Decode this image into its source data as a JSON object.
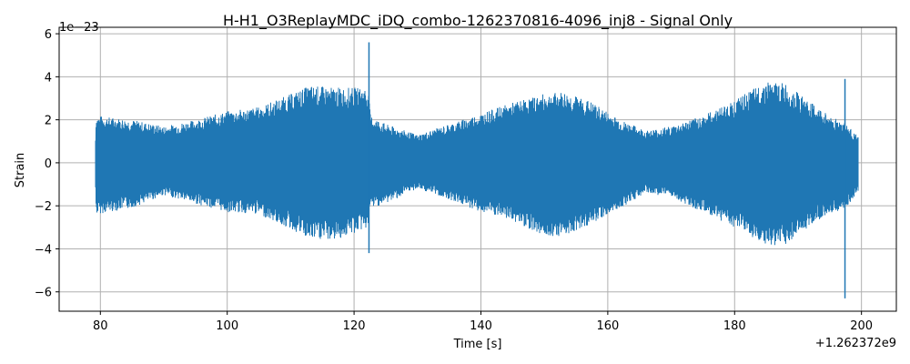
{
  "chart_data": {
    "type": "line",
    "title": "H-H1_O3ReplayMDC_iDQ_combo-1262370816-4096_inj8 - Signal Only",
    "xlabel": "Time [s]",
    "ylabel": "Strain",
    "x_offset_label": "+1.262372e9",
    "y_scale_label": "1e−23",
    "xlim": [
      73.5,
      205.5
    ],
    "ylim": [
      -6.9,
      6.3
    ],
    "x_ticks": [
      80,
      100,
      120,
      140,
      160,
      180,
      200
    ],
    "y_ticks": [
      -6,
      -4,
      -2,
      0,
      2,
      4,
      6
    ],
    "x_tick_labels": [
      "80",
      "100",
      "120",
      "140",
      "160",
      "180",
      "200"
    ],
    "y_tick_labels": [
      "−6",
      "−4",
      "−2",
      "0",
      "2",
      "4",
      "6"
    ],
    "grid": true,
    "color": "#1f77b4",
    "series": [
      {
        "x_range": [
          79.3,
          199.5
        ],
        "envelope": [
          {
            "x": 79.3,
            "max": 2.2,
            "min": -2.4
          },
          {
            "x": 85,
            "max": 2.0,
            "min": -2.1
          },
          {
            "x": 90,
            "max": 1.7,
            "min": -1.5
          },
          {
            "x": 95,
            "max": 2.0,
            "min": -1.9
          },
          {
            "x": 100,
            "max": 2.4,
            "min": -2.3
          },
          {
            "x": 105,
            "max": 2.6,
            "min": -2.4
          },
          {
            "x": 110,
            "max": 3.2,
            "min": -3.1
          },
          {
            "x": 113,
            "max": 3.6,
            "min": -3.6
          },
          {
            "x": 117,
            "max": 3.5,
            "min": -3.6
          },
          {
            "x": 120,
            "max": 3.5,
            "min": -3.3
          },
          {
            "x": 122.2,
            "max": 3.5,
            "min": -3.0
          },
          {
            "x": 122.6,
            "max": 2.2,
            "min": -2.1
          },
          {
            "x": 125,
            "max": 1.8,
            "min": -1.9
          },
          {
            "x": 130,
            "max": 1.3,
            "min": -1.2
          },
          {
            "x": 135,
            "max": 1.8,
            "min": -1.7
          },
          {
            "x": 140,
            "max": 2.3,
            "min": -2.3
          },
          {
            "x": 145,
            "max": 2.8,
            "min": -2.7
          },
          {
            "x": 150,
            "max": 3.2,
            "min": -3.4
          },
          {
            "x": 153,
            "max": 3.3,
            "min": -3.4
          },
          {
            "x": 157,
            "max": 2.9,
            "min": -2.9
          },
          {
            "x": 162,
            "max": 2.0,
            "min": -2.1
          },
          {
            "x": 166,
            "max": 1.5,
            "min": -1.4
          },
          {
            "x": 170,
            "max": 1.7,
            "min": -1.6
          },
          {
            "x": 175,
            "max": 2.2,
            "min": -2.3
          },
          {
            "x": 180,
            "max": 2.9,
            "min": -3.0
          },
          {
            "x": 185,
            "max": 3.8,
            "min": -3.9
          },
          {
            "x": 188,
            "max": 3.7,
            "min": -3.8
          },
          {
            "x": 192,
            "max": 2.8,
            "min": -2.9
          },
          {
            "x": 195,
            "max": 2.2,
            "min": -2.3
          },
          {
            "x": 197.3,
            "max": 1.9,
            "min": -2.3
          },
          {
            "x": 199.5,
            "max": 1.2,
            "min": -1.3
          }
        ],
        "spikes": [
          {
            "x": 122.35,
            "max": 5.6,
            "min": -4.2
          },
          {
            "x": 197.4,
            "max": 3.9,
            "min": -6.3
          }
        ]
      }
    ]
  }
}
